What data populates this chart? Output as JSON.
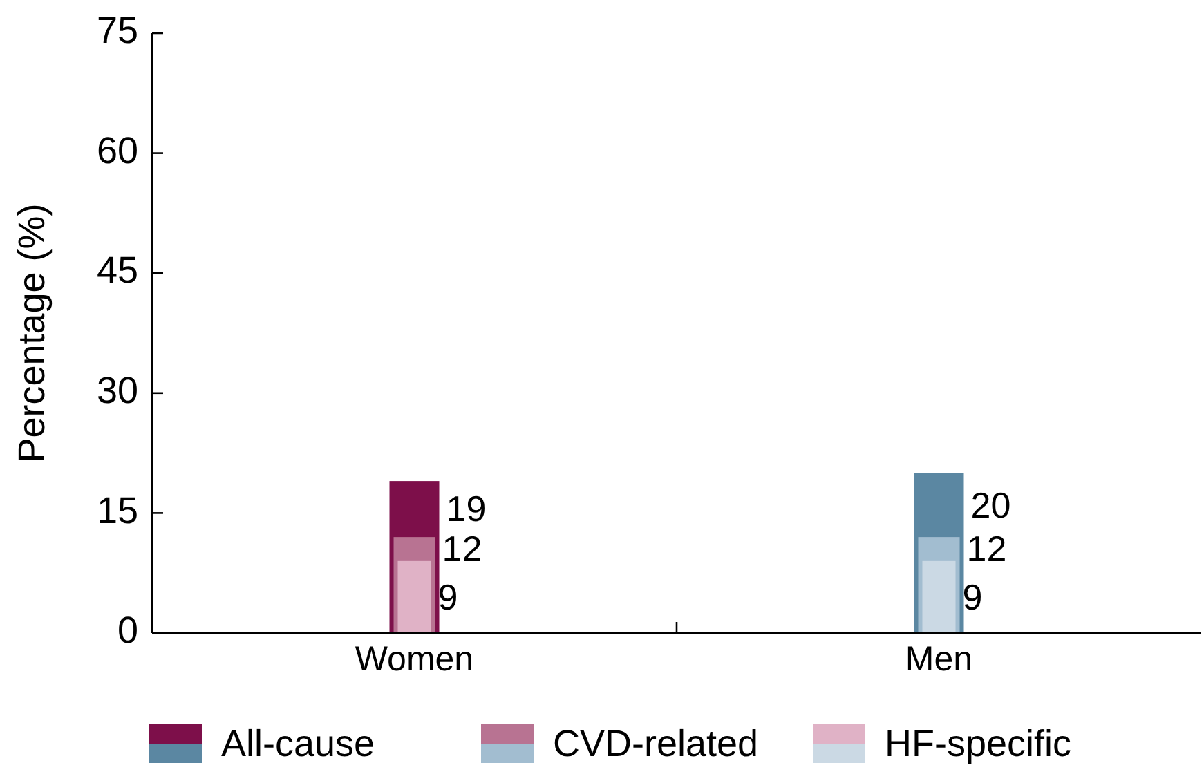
{
  "chart_data": {
    "type": "bar",
    "ylabel": "Percentage (%)",
    "categories": [
      "Women",
      "Men"
    ],
    "series": [
      {
        "name": "All-cause",
        "colors": [
          "#7d0f4a",
          "#5b87a2"
        ],
        "values": [
          19,
          20
        ]
      },
      {
        "name": "CVD-related",
        "colors": [
          "#b87392",
          "#a2bdd0"
        ],
        "values": [
          12,
          12
        ]
      },
      {
        "name": "HF-specific",
        "colors": [
          "#e0b2c6",
          "#cbd9e4"
        ],
        "values": [
          9,
          9
        ]
      }
    ],
    "ylim": [
      0,
      75
    ],
    "yticks": [
      0,
      15,
      30,
      45,
      60,
      75
    ],
    "data_labels": true,
    "legend": "bottom",
    "grid": false
  }
}
